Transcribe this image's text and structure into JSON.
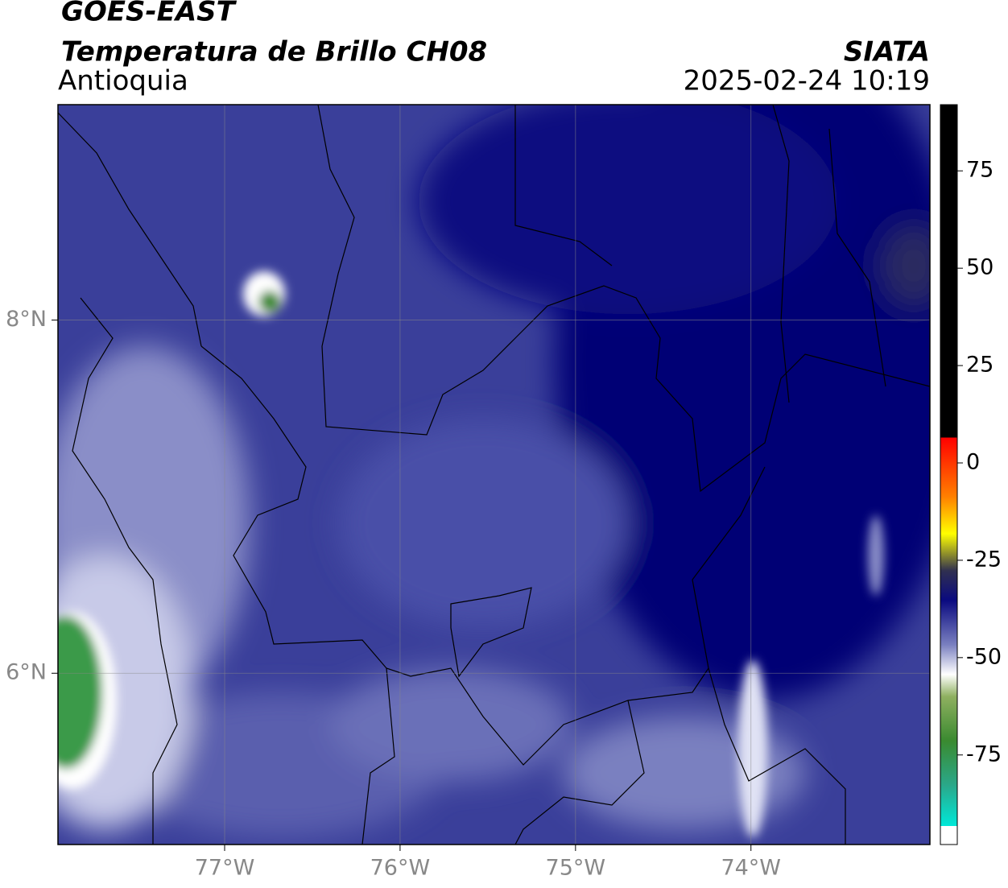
{
  "chart_data": {
    "type": "map",
    "title": "GOES-EAST",
    "subtitle": "Temperatura de Brillo CH08",
    "region": "Antioquia",
    "source": "SIATA",
    "datetime": "2025-02-24 10:19",
    "xlim": [
      -77.95,
      -72.98
    ],
    "ylim": [
      5.03,
      9.22
    ],
    "xticks": [
      {
        "value": -77,
        "label": "77°W"
      },
      {
        "value": -76,
        "label": "76°W"
      },
      {
        "value": -75,
        "label": "75°W"
      },
      {
        "value": -74,
        "label": "74°W"
      }
    ],
    "yticks": [
      {
        "value": 6,
        "label": "6°N"
      },
      {
        "value": 8,
        "label": "8°N"
      }
    ],
    "grid": true,
    "colorbar_lim": [
      -98,
      92
    ],
    "colorbar_ticks": [
      -75,
      -50,
      -25,
      0,
      25,
      50,
      75
    ]
  }
}
